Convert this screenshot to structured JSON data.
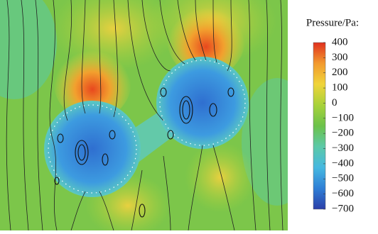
{
  "chart_data": {
    "type": "contour",
    "colorbar_title": "Pressure/Pa:",
    "clim": [
      -700,
      400
    ],
    "cticks": [
      400,
      300,
      200,
      100,
      0,
      {
        "value": -100,
        "label": "−100"
      },
      {
        "value": -200,
        "label": "−200"
      },
      {
        "value": -300,
        "label": "−300"
      },
      {
        "value": -400,
        "label": "−400"
      },
      {
        "value": -500,
        "label": "−500"
      },
      {
        "value": -600,
        "label": "−600"
      },
      {
        "value": -700,
        "label": "−700"
      }
    ],
    "colormap": [
      "#2b3fa8",
      "#2f7fd6",
      "#46b8e0",
      "#5cc9a8",
      "#6cc24a",
      "#a8d23a",
      "#f0d43a",
      "#f29a2e",
      "#e0301e"
    ]
  }
}
